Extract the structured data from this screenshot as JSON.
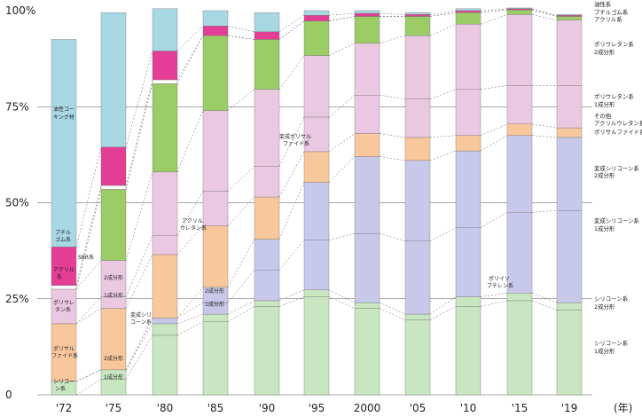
{
  "chart_data": {
    "type": "bar",
    "stacked": true,
    "normalized": true,
    "categories": [
      "'72",
      "'75",
      "'80",
      "'85",
      "'90",
      "'95",
      "2000",
      "'05",
      "'10",
      "'15",
      "'19"
    ],
    "x_unit": "(年)",
    "y_ticks": [
      "0",
      "25%",
      "50%",
      "75%",
      "100%"
    ],
    "ylim": [
      0,
      100
    ],
    "grid": "horizontal",
    "series": [
      {
        "name": "シリコーン系 1成分形",
        "color": "#c8e6c0",
        "values": [
          0,
          4,
          15.5,
          19,
          23,
          25.5,
          22.5,
          19.5,
          23,
          24.5,
          22
        ]
      },
      {
        "name": "シリコーン系 2成分形",
        "color": "#c8e6c0",
        "values": [
          3.5,
          2.5,
          3,
          2,
          1.5,
          1.8,
          1.5,
          1.5,
          2.5,
          2,
          2
        ]
      },
      {
        "name": "変成シリコーン系 1成分形",
        "color": "#c8c8eb",
        "values": [
          0,
          0,
          1.5,
          3,
          8,
          13,
          18,
          19,
          18,
          21,
          24
        ]
      },
      {
        "name": "変成シリコーン系 2成分形",
        "color": "#c8c8eb",
        "values": [
          0,
          0,
          0,
          4,
          8,
          15,
          20,
          21,
          20,
          20,
          19
        ]
      },
      {
        "name": "ポリサルファイド系",
        "color": "#f9c79c",
        "values": [
          15,
          16,
          16.5,
          16,
          11,
          8,
          6,
          6,
          4,
          3,
          2.5
        ]
      },
      {
        "name": "ポリウレタン系 1成分形",
        "color": "#ebc8e1",
        "values": [
          0,
          3,
          5,
          9,
          8,
          9,
          10,
          10,
          12,
          10,
          11
        ]
      },
      {
        "name": "ポリウレタン系 2成分形",
        "color": "#ebc8e1",
        "values": [
          9,
          9.5,
          16.5,
          21,
          20,
          16,
          13.5,
          16.5,
          17,
          18.5,
          17
        ]
      },
      {
        "name": "アクリル系",
        "color": "#9bcc66",
        "values": [
          0,
          18.5,
          23,
          19.5,
          13,
          9,
          7,
          5,
          3,
          1.2,
          1
        ]
      },
      {
        "name": "SBR系",
        "color": "#ffffff",
        "values": [
          1,
          1,
          1,
          0,
          0,
          0,
          0,
          0,
          0,
          0,
          0
        ]
      },
      {
        "name": "ブチルゴム系",
        "color": "#e33d96",
        "values": [
          10,
          10,
          7.5,
          2.5,
          2,
          1.5,
          0.8,
          0.5,
          0.5,
          0.3,
          0.3
        ]
      },
      {
        "name": "油性コーキング材",
        "color": "#a8d8e4",
        "values": [
          54,
          35,
          11,
          4,
          5,
          1.2,
          0.7,
          0.5,
          0.5,
          0.2,
          0.2
        ]
      }
    ],
    "legend": [
      "油性系",
      "ブチルゴム系",
      "アクリル系",
      "ポリウレタン系",
      "2成分形",
      "ポリウレタン系",
      "1成分形",
      "その他",
      "アクリルウレタン系",
      "ポリサルファイド系",
      "変成シリコーン系",
      "2成分形",
      "変成シリコーン系",
      "1成分形",
      "シリコーン系",
      "2成分形",
      "シリコーン系",
      "1成分形"
    ],
    "annotations": [
      "油性コー",
      "キング材",
      "ブチル",
      "ゴム系",
      "SBR系",
      "アクリル",
      "系",
      "ポリウレ",
      "タン系",
      "ポリサル",
      "ファイド系",
      "シリコー",
      "ン系",
      "2成分形",
      "1成分形",
      "変成シリ",
      "コーン系",
      "アクリル",
      "ウレタン系",
      "変成ポリサル",
      "ファイド系",
      "ポリイソ",
      "ブチレン系"
    ]
  }
}
